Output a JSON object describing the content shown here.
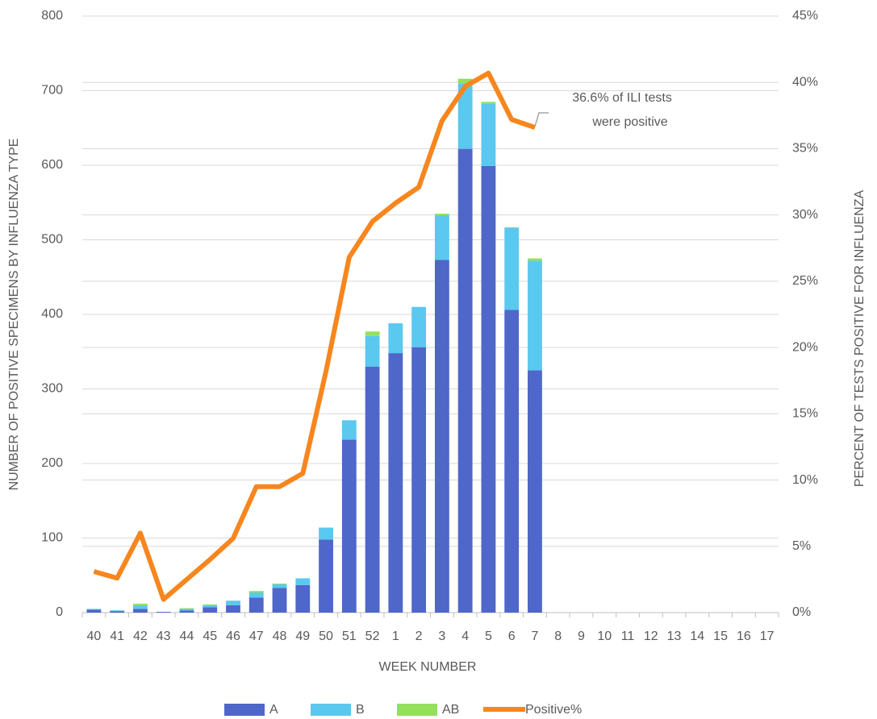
{
  "chart_data": {
    "type": "bar",
    "categories": [
      "40",
      "41",
      "42",
      "43",
      "44",
      "45",
      "46",
      "47",
      "48",
      "49",
      "50",
      "51",
      "52",
      "1",
      "2",
      "3",
      "4",
      "5",
      "6",
      "7",
      "8",
      "9",
      "10",
      "11",
      "12",
      "13",
      "14",
      "15",
      "16",
      "17"
    ],
    "series": [
      {
        "name": "A",
        "color": "#4f67c9",
        "values": [
          4,
          2,
          5,
          1,
          3,
          7,
          10,
          20,
          33,
          37,
          98,
          232,
          330,
          348,
          356,
          473,
          622,
          599,
          406,
          325,
          null,
          null,
          null,
          null,
          null,
          null,
          null,
          null,
          null,
          null
        ]
      },
      {
        "name": "B",
        "color": "#5bc8ef",
        "values": [
          1,
          1,
          5,
          0,
          2,
          3,
          6,
          7,
          5,
          9,
          16,
          26,
          41,
          40,
          54,
          60,
          88,
          84,
          110,
          147,
          null,
          null,
          null,
          null,
          null,
          null,
          null,
          null,
          null,
          null
        ]
      },
      {
        "name": "AB",
        "color": "#93e05a",
        "values": [
          0,
          0,
          2,
          0,
          1,
          1,
          0,
          2,
          1,
          0,
          0,
          0,
          6,
          0,
          0,
          2,
          6,
          2,
          1,
          3,
          null,
          null,
          null,
          null,
          null,
          null,
          null,
          null,
          null,
          null
        ]
      },
      {
        "name": "Positive%",
        "type": "line",
        "axis": "y2",
        "color": "#f7861e",
        "values": [
          3.1,
          2.6,
          6.0,
          1.0,
          2.5,
          4.0,
          5.6,
          9.5,
          9.5,
          10.5,
          18.2,
          26.8,
          29.5,
          30.9,
          32.1,
          37.1,
          39.7,
          40.7,
          37.2,
          36.6,
          null,
          null,
          null,
          null,
          null,
          null,
          null,
          null,
          null,
          null
        ]
      }
    ],
    "ylim": [
      0,
      800
    ],
    "yticks": [
      0,
      100,
      200,
      300,
      400,
      500,
      600,
      700,
      800
    ],
    "y2lim": [
      0,
      45
    ],
    "y2ticks": [
      {
        "value": 0,
        "label": "0%"
      },
      {
        "value": 5,
        "label": "5%"
      },
      {
        "value": 10,
        "label": "10%"
      },
      {
        "value": 15,
        "label": "15%"
      },
      {
        "value": 20,
        "label": "20%"
      },
      {
        "value": 25,
        "label": "25%"
      },
      {
        "value": 30,
        "label": "30%"
      },
      {
        "value": 35,
        "label": "35%"
      },
      {
        "value": 40,
        "label": "40%"
      },
      {
        "value": 45,
        "label": "45%"
      }
    ],
    "xlabel": "WEEK NUMBER",
    "ylabel": "NUMBER OF POSITIVE SPECIMENS BY INFLUENZA TYPE",
    "y2label": "PERCENT OF TESTS POSITIVE FOR INFLUENZA",
    "annotation": [
      "36.6% of ILI tests",
      "were positive"
    ],
    "grid": true,
    "legend": "bottom"
  }
}
